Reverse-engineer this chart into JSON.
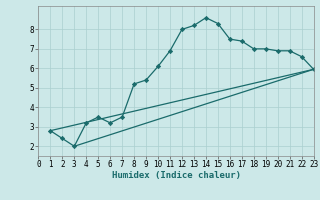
{
  "xlabel": "Humidex (Indice chaleur)",
  "bg_color": "#cce8e8",
  "grid_color": "#aacfcf",
  "line_color": "#1a6b6b",
  "xlim": [
    0,
    23
  ],
  "ylim": [
    1.5,
    9.2
  ],
  "xticks": [
    0,
    1,
    2,
    3,
    4,
    5,
    6,
    7,
    8,
    9,
    10,
    11,
    12,
    13,
    14,
    15,
    16,
    17,
    18,
    19,
    20,
    21,
    22,
    23
  ],
  "yticks": [
    2,
    3,
    4,
    5,
    6,
    7,
    8
  ],
  "line1_x": [
    1,
    2,
    3,
    4,
    5,
    6,
    7,
    8,
    9,
    10,
    11,
    12,
    13,
    14,
    15,
    16,
    17,
    18,
    19,
    20,
    21,
    22,
    23
  ],
  "line1_y": [
    2.8,
    2.4,
    2.0,
    3.2,
    3.5,
    3.2,
    3.5,
    5.2,
    5.4,
    6.1,
    6.9,
    8.0,
    8.2,
    8.6,
    8.3,
    7.5,
    7.4,
    7.0,
    7.0,
    6.9,
    6.9,
    6.6,
    5.95
  ],
  "line2_x": [
    1,
    23
  ],
  "line2_y": [
    2.8,
    5.95
  ],
  "line3_x": [
    3,
    23
  ],
  "line3_y": [
    2.0,
    5.95
  ],
  "marker": "D",
  "marker_size": 2.2,
  "line_width": 0.9,
  "tick_fontsize": 5.5,
  "xlabel_fontsize": 6.5
}
